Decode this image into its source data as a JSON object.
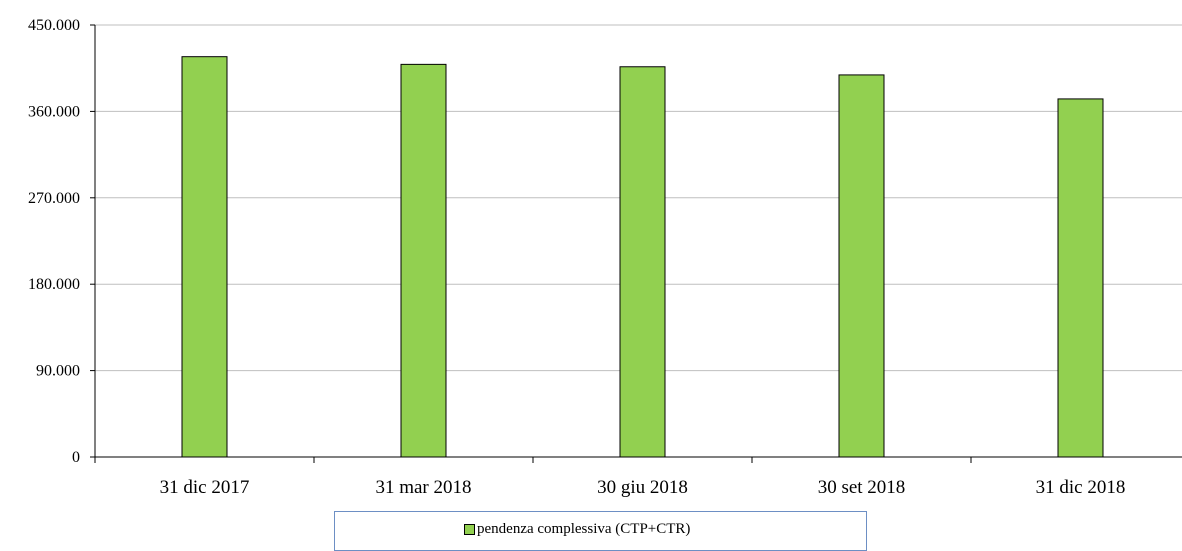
{
  "chart_data": {
    "type": "bar",
    "categories": [
      "31 dic 2017",
      "31 mar 2018",
      "30 giu 2018",
      "30 set 2018",
      "31 dic 2018"
    ],
    "series": [
      {
        "name": "pendenza complessiva (CTP+CTR)",
        "values": [
          417000,
          409000,
          406500,
          398000,
          373000
        ]
      }
    ],
    "y_ticks": [
      "0",
      "90.000",
      "180.000",
      "270.000",
      "360.000",
      "450.000"
    ],
    "y_tick_values": [
      0,
      90000,
      180000,
      270000,
      360000,
      450000
    ],
    "ylim": [
      0,
      450000
    ],
    "title": "",
    "xlabel": "",
    "ylabel": "",
    "grid": true,
    "legend_position": "bottom",
    "colors": {
      "bar": "#92d050",
      "bar_border": "#000000",
      "grid": "#bfbfbf",
      "axis": "#000000",
      "legend_border": "#6d8fc4"
    }
  }
}
